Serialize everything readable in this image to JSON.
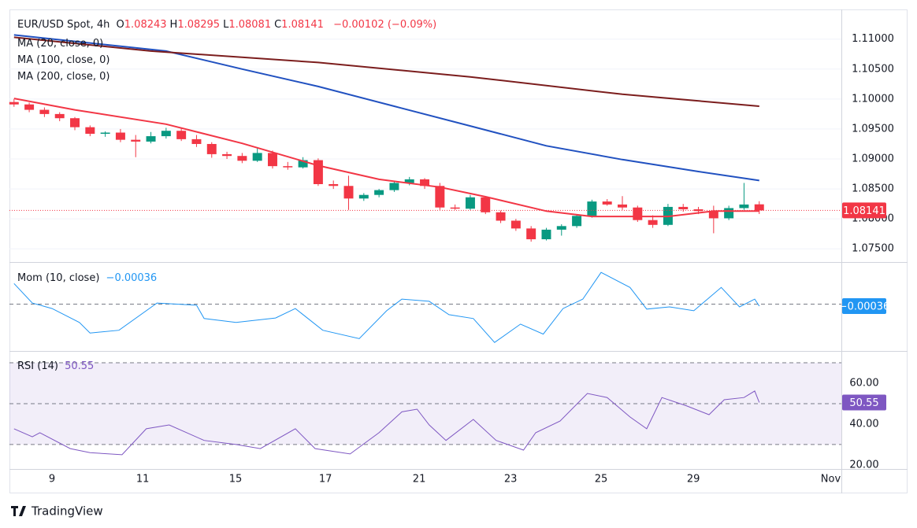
{
  "chart_data": [
    {
      "type": "candlestick",
      "title": "EUR/USD Spot, 4h",
      "legend": [
        {
          "key": "O",
          "value": "1.08243"
        },
        {
          "key": "H",
          "value": "1.08295"
        },
        {
          "key": "L",
          "value": "1.08081"
        },
        {
          "key": "C",
          "value": "1.08141"
        }
      ],
      "change": "−0.00102 (−0.09%)",
      "up_color": "#089981",
      "down_color": "#f23645",
      "open": [
        1.0995,
        1.0991,
        1.0982,
        1.0975,
        1.0968,
        1.0953,
        1.0942,
        1.0944,
        1.0932,
        1.0929,
        1.0938,
        1.0947,
        1.0933,
        1.0925,
        1.0908,
        1.0905,
        1.0897,
        1.091,
        1.0888,
        1.0886,
        1.0898,
        1.0858,
        1.0855,
        1.0834,
        1.084,
        1.0848,
        1.086,
        1.0866,
        1.0855,
        1.0819,
        1.0817,
        1.0836,
        1.0811,
        1.0797,
        1.0784,
        1.0766,
        1.0782,
        1.0788,
        1.0805,
        1.0829,
        1.0824,
        1.0819,
        1.0798,
        1.079,
        1.082,
        1.0816,
        1.0813,
        1.0801,
        1.0818,
        1.08243
      ],
      "high": [
        1.1,
        1.0994,
        1.0986,
        1.0978,
        1.097,
        1.0956,
        1.0946,
        1.095,
        1.094,
        1.0945,
        1.0952,
        1.0951,
        1.094,
        1.0928,
        1.0912,
        1.091,
        1.0918,
        1.0914,
        1.0895,
        1.0903,
        1.0901,
        1.0864,
        1.0872,
        1.0843,
        1.085,
        1.0862,
        1.087,
        1.0868,
        1.086,
        1.0824,
        1.084,
        1.0838,
        1.0814,
        1.08,
        1.0788,
        1.0785,
        1.0791,
        1.0808,
        1.0832,
        1.0833,
        1.0838,
        1.0822,
        1.0806,
        1.0825,
        1.0825,
        1.082,
        1.0822,
        1.0822,
        1.086,
        1.08295
      ],
      "low": [
        1.0987,
        1.0978,
        1.097,
        1.0963,
        1.0948,
        1.0938,
        1.0937,
        1.0928,
        1.0903,
        1.0926,
        1.0934,
        1.093,
        1.092,
        1.0902,
        1.09,
        1.0893,
        1.0895,
        1.0884,
        1.0882,
        1.0884,
        1.0855,
        1.085,
        1.0815,
        1.083,
        1.0836,
        1.0845,
        1.0856,
        1.085,
        1.0815,
        1.0815,
        1.0815,
        1.0808,
        1.0793,
        1.078,
        1.0762,
        1.0764,
        1.0772,
        1.0785,
        1.0802,
        1.0822,
        1.0815,
        1.0795,
        1.0785,
        1.0788,
        1.0812,
        1.0808,
        1.0776,
        1.0798,
        1.0815,
        1.08081
      ],
      "close": [
        1.0991,
        1.0982,
        1.0975,
        1.0968,
        1.0953,
        1.0942,
        1.0944,
        1.0932,
        1.0929,
        1.0938,
        1.0947,
        1.0933,
        1.0925,
        1.0908,
        1.0905,
        1.0897,
        1.091,
        1.0888,
        1.0886,
        1.0898,
        1.0858,
        1.0855,
        1.0834,
        1.084,
        1.0848,
        1.086,
        1.0866,
        1.0855,
        1.0819,
        1.0817,
        1.0836,
        1.0811,
        1.0797,
        1.0784,
        1.0766,
        1.0782,
        1.0788,
        1.0805,
        1.0829,
        1.0824,
        1.0819,
        1.0798,
        1.079,
        1.082,
        1.0816,
        1.0813,
        1.0801,
        1.0818,
        1.0824,
        1.08141
      ],
      "last_label": "1.08141",
      "overlays": [
        {
          "name": "MA (20, close, 0)",
          "color": "#f23645",
          "x": [
            0,
            4,
            10,
            15,
            20,
            24,
            28,
            31,
            35,
            38,
            43,
            46,
            49
          ],
          "values": [
            1.1001,
            1.0982,
            1.0958,
            1.0926,
            1.0889,
            1.0866,
            1.0853,
            1.0837,
            1.0813,
            1.0804,
            1.0804,
            1.0813,
            1.0813
          ]
        },
        {
          "name": "MA (100, close, 0)",
          "color": "#2151c0",
          "x": [
            0,
            10,
            15,
            20,
            25,
            30,
            35,
            40,
            45,
            49
          ],
          "values": [
            1.1107,
            1.108,
            1.105,
            1.1021,
            1.0988,
            1.0955,
            1.0922,
            1.0899,
            1.0879,
            1.0864
          ]
        },
        {
          "name": "MA (200, close, 0)",
          "color": "#7b1d1d",
          "x": [
            0,
            9,
            20,
            30,
            40,
            49
          ],
          "values": [
            1.1103,
            1.108,
            1.1061,
            1.1037,
            1.1008,
            1.0988
          ]
        }
      ],
      "xlim": [
        -0.3,
        54.4
      ],
      "xticks": [
        {
          "value": 2.5,
          "label": "9"
        },
        {
          "value": 8.46,
          "label": "11"
        },
        {
          "value": 14.57,
          "label": "15"
        },
        {
          "value": 20.48,
          "label": "17"
        },
        {
          "value": 26.64,
          "label": "21"
        },
        {
          "value": 32.65,
          "label": "23"
        },
        {
          "value": 38.6,
          "label": "25"
        },
        {
          "value": 44.67,
          "label": "29"
        },
        {
          "value": 53.7,
          "label": "Nov"
        }
      ],
      "ylim": [
        1.0728,
        1.1139
      ],
      "yticks": [
        {
          "value": 1.11,
          "label": "1.11000"
        },
        {
          "value": 1.105,
          "label": "1.10500"
        },
        {
          "value": 1.1,
          "label": "1.10000"
        },
        {
          "value": 1.095,
          "label": "1.09500"
        },
        {
          "value": 1.09,
          "label": "1.09000"
        },
        {
          "value": 1.085,
          "label": "1.08500"
        },
        {
          "value": 1.08,
          "label": "1.08000"
        },
        {
          "value": 1.075,
          "label": "1.07500"
        }
      ]
    },
    {
      "type": "line",
      "title": "Mom (10, close)",
      "value_text": "−0.00036",
      "color": "#2196f3",
      "x": [
        0,
        1.2,
        2.5,
        4.3,
        5,
        6.9,
        9.4,
        12,
        12.5,
        14.6,
        17.2,
        18.5,
        20.3,
        22.7,
        24.5,
        25.5,
        27.3,
        28.6,
        30.2,
        31.6,
        33.3,
        34.8,
        36.1,
        37.4,
        38.6,
        40.5,
        41.6,
        43.1,
        44.7,
        46.5,
        47.7,
        48.7,
        49
      ],
      "values": [
        0.0037,
        0.0002,
        -0.0008,
        -0.0033,
        -0.0052,
        -0.0047,
        0.0002,
        -0.0002,
        -0.0026,
        -0.0033,
        -0.0025,
        -0.0008,
        -0.0047,
        -0.0062,
        -0.0012,
        0.0009,
        0.0005,
        -0.0019,
        -0.0026,
        -0.0069,
        -0.0036,
        -0.0054,
        -0.0008,
        0.0009,
        0.0057,
        0.003,
        -0.0009,
        -0.0005,
        -0.0012,
        0.003,
        -0.0005,
        0.0009,
        -0.00036
      ],
      "last_label": "−0.00036",
      "levels": [
        0
      ],
      "ylim": [
        -0.008,
        0.007
      ]
    },
    {
      "type": "line",
      "title": "RSI (14)",
      "value_text": "50.55",
      "color": "#7e57c2",
      "x": [
        0,
        1.2,
        1.7,
        3.7,
        5,
        7.1,
        8.7,
        10.2,
        12.5,
        14.6,
        16.2,
        18.5,
        19.8,
        22.1,
        24,
        25.5,
        26.5,
        27.3,
        28.4,
        30.2,
        31.7,
        33.5,
        34.3,
        35.9,
        37.7,
        39,
        40.5,
        41.6,
        42.6,
        44.2,
        45.7,
        46.7,
        48,
        48.7,
        49
      ],
      "values": [
        37.7,
        33.8,
        35.8,
        28,
        26,
        25,
        37.7,
        39.6,
        32,
        30,
        28,
        37.7,
        28,
        25.4,
        35.8,
        46,
        47.3,
        39.6,
        32,
        42.3,
        32,
        27.3,
        35.8,
        41.5,
        55,
        53,
        43.5,
        37.7,
        53,
        49,
        44.6,
        51.9,
        53,
        56.2,
        50.55
      ],
      "last_label": "50.55",
      "levels": [
        70,
        50,
        30
      ],
      "ylim": [
        19.2,
        75
      ],
      "yticks": [
        {
          "value": 60,
          "label": "60.00"
        },
        {
          "value": 40,
          "label": "40.00"
        },
        {
          "value": 20,
          "label": "20.00"
        }
      ]
    }
  ],
  "footer": {
    "brand": "TradingView"
  }
}
